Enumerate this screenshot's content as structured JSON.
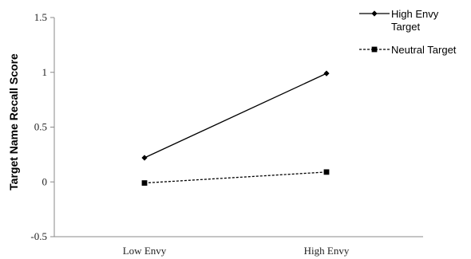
{
  "chart_data": {
    "type": "line",
    "categories": [
      "Low Envy",
      "High Envy"
    ],
    "series": [
      {
        "name": "High Envy Target",
        "legend_lines": [
          "High Envy",
          "Target"
        ],
        "values": [
          0.22,
          0.99
        ],
        "line_style": "solid",
        "marker": "diamond",
        "color": "#000000"
      },
      {
        "name": "Neutral Target",
        "legend_lines": [
          "Neutral Target"
        ],
        "values": [
          -0.01,
          0.09
        ],
        "line_style": "dashed",
        "marker": "square",
        "color": "#000000"
      }
    ],
    "ylabel": "Target Name Recall Score",
    "xlabel": "",
    "ylim": [
      -0.5,
      1.5
    ],
    "yticks": [
      -0.5,
      0,
      0.5,
      1,
      1.5
    ],
    "ytick_labels": [
      "-0.5",
      "0",
      "0.5",
      "1",
      "1.5"
    ],
    "grid": false,
    "legend_position": "top-right"
  }
}
